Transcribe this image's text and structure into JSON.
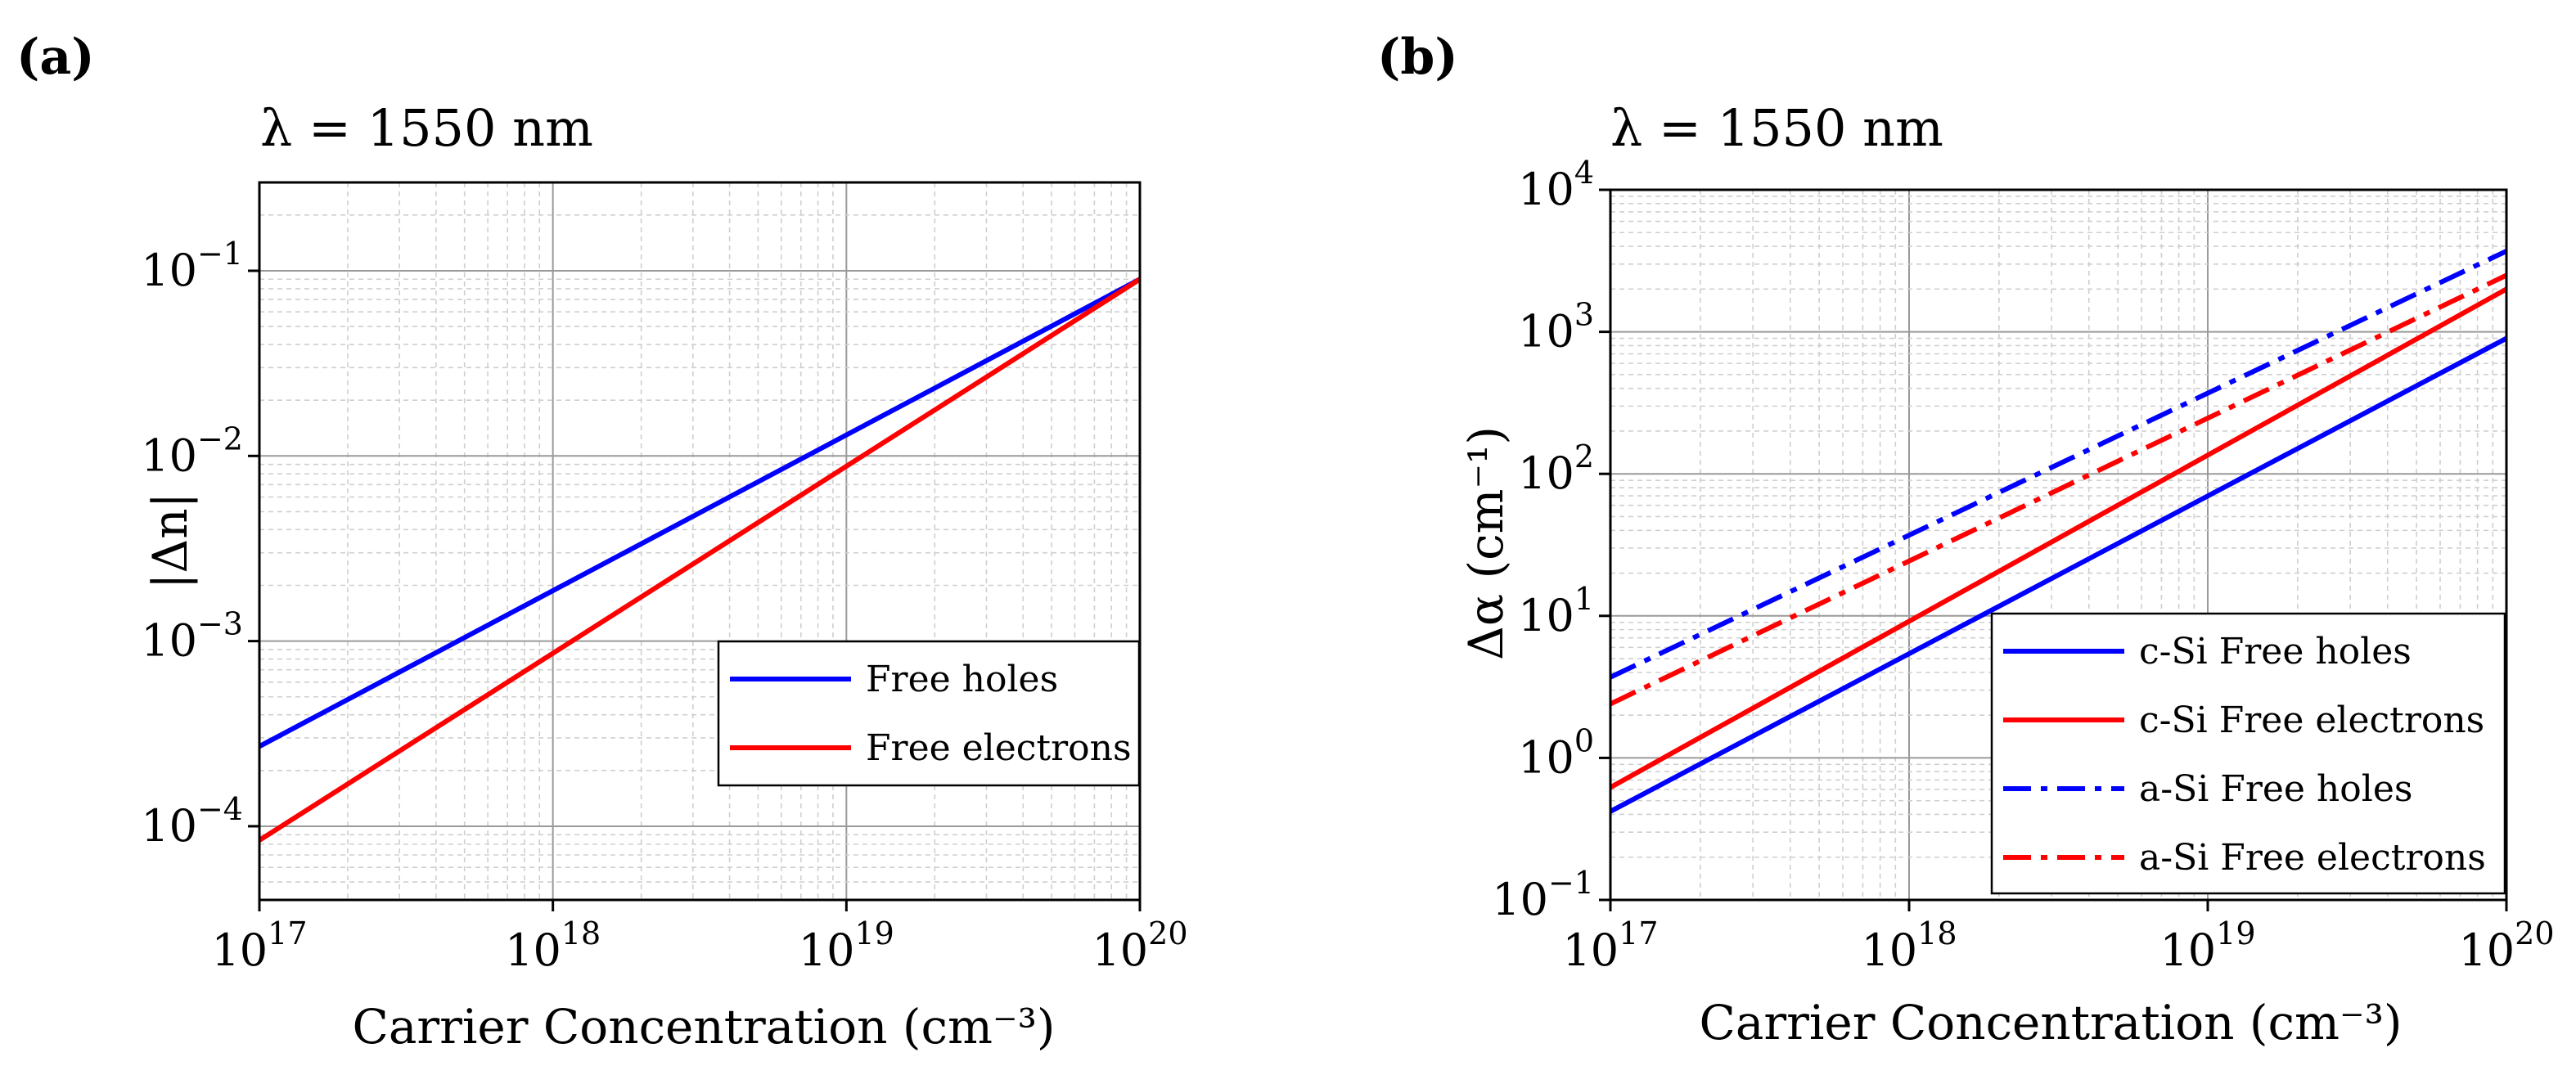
{
  "chart_data": [
    {
      "panel": "(a)",
      "type": "line",
      "title": "λ = 1550 nm",
      "xlabel": "Carrier Concentration (cm⁻³)",
      "ylabel": "|Δn|",
      "xscale": "log",
      "yscale": "log",
      "xlim": [
        1e+17,
        1e+20
      ],
      "ylim": [
        4e-05,
        0.3
      ],
      "grid": true,
      "x_ticks": [
        {
          "value": 1e+17,
          "mantissa": "10",
          "exp": "17"
        },
        {
          "value": 1e+18,
          "mantissa": "10",
          "exp": "18"
        },
        {
          "value": 1e+19,
          "mantissa": "10",
          "exp": "19"
        },
        {
          "value": 1e+20,
          "mantissa": "10",
          "exp": "20"
        }
      ],
      "y_ticks": [
        {
          "value": 0.0001,
          "mantissa": "10",
          "exp": "−4"
        },
        {
          "value": 0.001,
          "mantissa": "10",
          "exp": "−3"
        },
        {
          "value": 0.01,
          "mantissa": "10",
          "exp": "−2"
        },
        {
          "value": 0.1,
          "mantissa": "10",
          "exp": "−1"
        }
      ],
      "legend_position": "center-right",
      "series": [
        {
          "name": "Free holes",
          "color": "#0000ff",
          "dash": "solid",
          "x": [
            1e+17,
            1e+20
          ],
          "values": [
            0.00027,
            0.09
          ]
        },
        {
          "name": "Free electrons",
          "color": "#ff0000",
          "dash": "solid",
          "x": [
            1e+17,
            1e+20
          ],
          "values": [
            8.4e-05,
            0.09
          ]
        }
      ]
    },
    {
      "panel": "(b)",
      "type": "line",
      "title": "λ = 1550 nm",
      "xlabel": "Carrier Concentration (cm⁻³)",
      "ylabel": "Δα (cm⁻¹)",
      "xscale": "log",
      "yscale": "log",
      "xlim": [
        1e+17,
        1e+20
      ],
      "ylim": [
        0.1,
        10000
      ],
      "grid": true,
      "x_ticks": [
        {
          "value": 1e+17,
          "mantissa": "10",
          "exp": "17"
        },
        {
          "value": 1e+18,
          "mantissa": "10",
          "exp": "18"
        },
        {
          "value": 1e+19,
          "mantissa": "10",
          "exp": "19"
        },
        {
          "value": 1e+20,
          "mantissa": "10",
          "exp": "20"
        }
      ],
      "y_ticks": [
        {
          "value": 0.1,
          "mantissa": "10",
          "exp": "−1"
        },
        {
          "value": 1,
          "mantissa": "10",
          "exp": "0"
        },
        {
          "value": 10,
          "mantissa": "10",
          "exp": "1"
        },
        {
          "value": 100,
          "mantissa": "10",
          "exp": "2"
        },
        {
          "value": 1000,
          "mantissa": "10",
          "exp": "3"
        },
        {
          "value": 10000,
          "mantissa": "10",
          "exp": "4"
        }
      ],
      "legend_position": "lower-right",
      "series": [
        {
          "name": "c-Si Free holes",
          "color": "#0000ff",
          "dash": "solid",
          "x": [
            1e+17,
            1e+20
          ],
          "values": [
            0.42,
            900
          ]
        },
        {
          "name": "c-Si Free electrons",
          "color": "#ff0000",
          "dash": "solid",
          "x": [
            1e+17,
            1e+20
          ],
          "values": [
            0.62,
            2000
          ]
        },
        {
          "name": "a-Si Free holes",
          "color": "#0000ff",
          "dash": "dashdot",
          "x": [
            1e+17,
            1e+20
          ],
          "values": [
            3.7,
            3700
          ]
        },
        {
          "name": "a-Si Free electrons",
          "color": "#ff0000",
          "dash": "dashdot",
          "x": [
            1e+17,
            1e+20
          ],
          "values": [
            2.4,
            2500
          ]
        }
      ]
    }
  ]
}
